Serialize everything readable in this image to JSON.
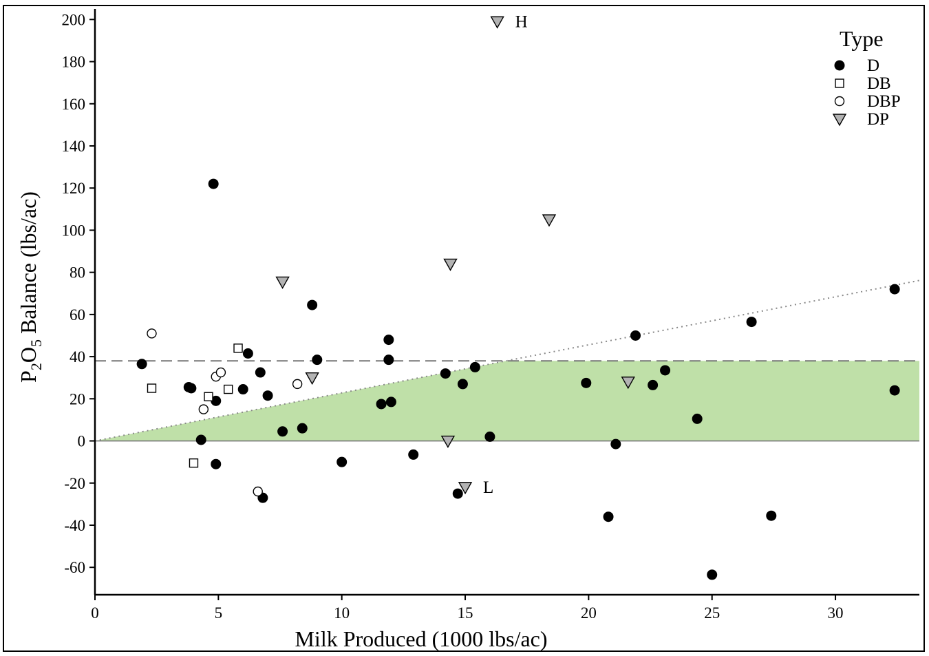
{
  "chart_data": {
    "type": "scatter",
    "xlabel": "Milk Produced (1000 lbs/ac)",
    "ylabel_main": "P",
    "ylabel_sub1": "2",
    "ylabel_mid": "O",
    "ylabel_sub2": "5",
    "ylabel_tail": " Balance (lbs/ac)",
    "xlim": [
      0,
      33.4
    ],
    "ylim": [
      -73,
      205
    ],
    "x_ticks": [
      0,
      5,
      10,
      15,
      20,
      25,
      30
    ],
    "y_ticks": [
      -60,
      -40,
      -20,
      0,
      20,
      40,
      60,
      80,
      100,
      120,
      140,
      160,
      180,
      200
    ],
    "grid": false,
    "legend": {
      "title": "Type",
      "position": "top-right",
      "entries": [
        {
          "label": "D",
          "marker": "filled-circle"
        },
        {
          "label": "DB",
          "marker": "open-square"
        },
        {
          "label": "DBP",
          "marker": "open-circle"
        },
        {
          "label": "DP",
          "marker": "gray-triangle-down"
        }
      ]
    },
    "reference_lines": {
      "dashed_horizontal_y": 38,
      "solid_horizontal_y": 0,
      "dotted_line_slope": 2.28,
      "shaded_band": {
        "lower": 0,
        "upper": 38,
        "color": "#bfe0a8"
      }
    },
    "annotations": [
      {
        "label": "H",
        "x": 16.3,
        "y": 199
      },
      {
        "label": "L",
        "x": 15.0,
        "y": -22
      }
    ],
    "series": [
      {
        "name": "D",
        "points": [
          [
            1.9,
            36.5
          ],
          [
            3.8,
            25.5
          ],
          [
            3.9,
            25
          ],
          [
            4.3,
            0.5
          ],
          [
            4.8,
            122
          ],
          [
            4.9,
            -11
          ],
          [
            4.9,
            19
          ],
          [
            6.0,
            24.5
          ],
          [
            6.2,
            41.5
          ],
          [
            6.7,
            32.5
          ],
          [
            6.8,
            -27
          ],
          [
            7.0,
            21.5
          ],
          [
            7.6,
            4.5
          ],
          [
            8.4,
            6
          ],
          [
            8.8,
            64.5
          ],
          [
            9.0,
            38.5
          ],
          [
            10.0,
            -10
          ],
          [
            11.6,
            17.5
          ],
          [
            11.9,
            48
          ],
          [
            11.9,
            38.5
          ],
          [
            12.0,
            18.5
          ],
          [
            12.9,
            -6.5
          ],
          [
            14.2,
            32
          ],
          [
            14.7,
            -25
          ],
          [
            14.9,
            27
          ],
          [
            15.4,
            35
          ],
          [
            16.0,
            2
          ],
          [
            19.9,
            27.5
          ],
          [
            20.8,
            -36
          ],
          [
            21.1,
            -1.5
          ],
          [
            21.9,
            50
          ],
          [
            22.6,
            26.5
          ],
          [
            23.1,
            33.5
          ],
          [
            24.4,
            10.5
          ],
          [
            25.0,
            -63.5
          ],
          [
            26.6,
            56.5
          ],
          [
            27.4,
            -35.5
          ],
          [
            32.4,
            72
          ],
          [
            32.4,
            24
          ]
        ]
      },
      {
        "name": "DB",
        "points": [
          [
            2.3,
            25
          ],
          [
            4.0,
            -10.5
          ],
          [
            4.6,
            21
          ],
          [
            5.4,
            24.5
          ],
          [
            5.8,
            44
          ]
        ]
      },
      {
        "name": "DBP",
        "points": [
          [
            2.3,
            51
          ],
          [
            4.4,
            15
          ],
          [
            4.9,
            30.5
          ],
          [
            5.1,
            32.5
          ],
          [
            6.6,
            -24
          ],
          [
            8.2,
            27
          ]
        ]
      },
      {
        "name": "DP",
        "points": [
          [
            16.3,
            199
          ],
          [
            18.4,
            105
          ],
          [
            14.4,
            84
          ],
          [
            7.6,
            75.5
          ],
          [
            8.8,
            30
          ],
          [
            21.6,
            28
          ],
          [
            14.3,
            0
          ],
          [
            15.0,
            -22
          ]
        ]
      }
    ]
  }
}
